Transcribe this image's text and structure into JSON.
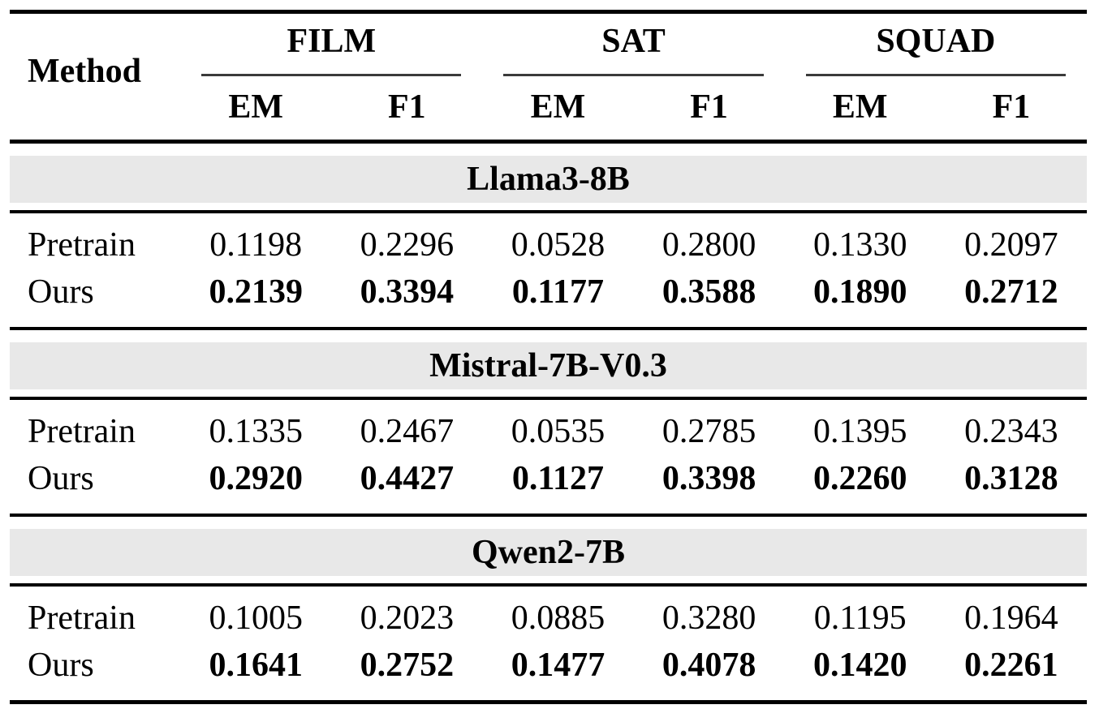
{
  "table": {
    "method_header": "Method",
    "groups": [
      {
        "label": "FILM"
      },
      {
        "label": "SAT"
      },
      {
        "label": "SQUAD"
      }
    ],
    "metric_headers": [
      "EM",
      "F1",
      "EM",
      "F1",
      "EM",
      "F1"
    ],
    "sections": [
      {
        "model": "Llama3-8B",
        "rows": [
          {
            "method": "Pretrain",
            "bold": false,
            "values": [
              "0.1198",
              "0.2296",
              "0.0528",
              "0.2800",
              "0.1330",
              "0.2097"
            ]
          },
          {
            "method": "Ours",
            "bold": true,
            "values": [
              "0.2139",
              "0.3394",
              "0.1177",
              "0.3588",
              "0.1890",
              "0.2712"
            ]
          }
        ]
      },
      {
        "model": "Mistral-7B-V0.3",
        "rows": [
          {
            "method": "Pretrain",
            "bold": false,
            "values": [
              "0.1335",
              "0.2467",
              "0.0535",
              "0.2785",
              "0.1395",
              "0.2343"
            ]
          },
          {
            "method": "Ours",
            "bold": true,
            "values": [
              "0.2920",
              "0.4427",
              "0.1127",
              "0.3398",
              "0.2260",
              "0.3128"
            ]
          }
        ]
      },
      {
        "model": "Qwen2-7B",
        "rows": [
          {
            "method": "Pretrain",
            "bold": false,
            "values": [
              "0.1005",
              "0.2023",
              "0.0885",
              "0.3280",
              "0.1195",
              "0.1964"
            ]
          },
          {
            "method": "Ours",
            "bold": true,
            "values": [
              "0.1641",
              "0.2752",
              "0.1477",
              "0.4078",
              "0.1420",
              "0.2261"
            ]
          }
        ]
      }
    ],
    "colors": {
      "band_bg": "#e8e8e8",
      "rule": "#000000",
      "cmidrule": "#3a3a3a",
      "text": "#000000"
    }
  }
}
